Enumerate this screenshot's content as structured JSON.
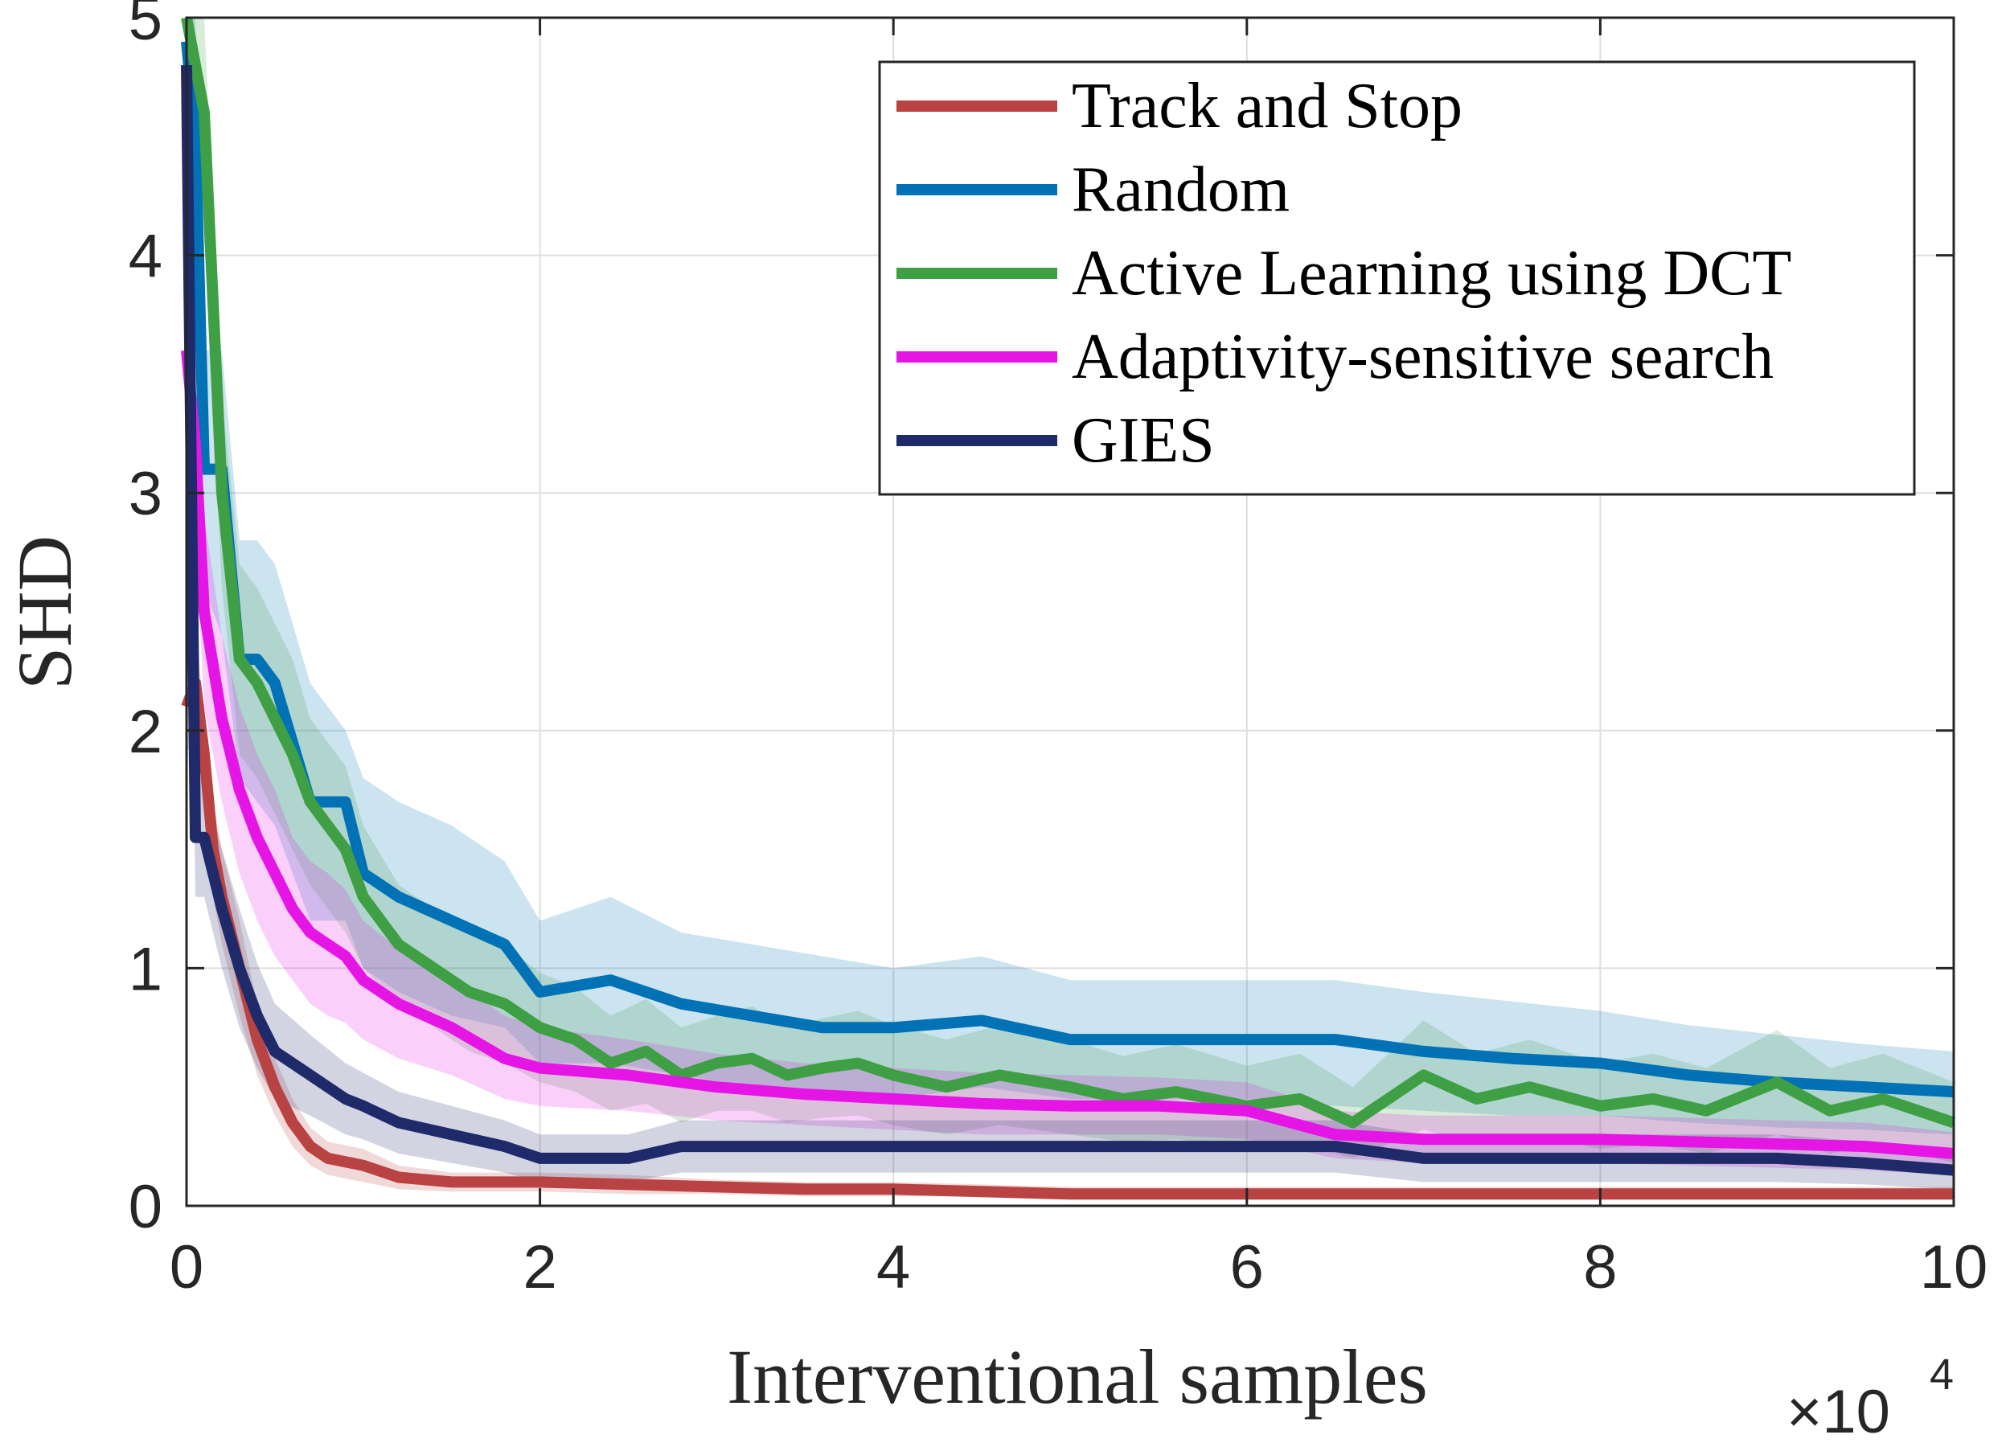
{
  "chart_data": {
    "type": "line",
    "title": "",
    "xlabel": "Interventional samples",
    "ylabel": "SHD",
    "xlim": [
      0,
      10
    ],
    "ylim": [
      0,
      5
    ],
    "x_multiplier_base": "×10",
    "x_multiplier_exponent": "4",
    "xticks": [
      0,
      2,
      4,
      6,
      8,
      10
    ],
    "yticks": [
      0,
      1,
      2,
      3,
      4,
      5
    ],
    "xtick_labels": [
      "0",
      "2",
      "4",
      "6",
      "8",
      "10"
    ],
    "ytick_labels": [
      "0",
      "1",
      "2",
      "3",
      "4",
      "5"
    ],
    "grid": true,
    "legend_position": "top-right",
    "series": [
      {
        "name": "Track and Stop",
        "color": "#B94242",
        "x": [
          0,
          0.05,
          0.1,
          0.15,
          0.2,
          0.3,
          0.4,
          0.5,
          0.6,
          0.7,
          0.8,
          1.0,
          1.2,
          1.5,
          2.0,
          2.5,
          3.0,
          3.5,
          4.0,
          4.5,
          5.0,
          6.0,
          7.0,
          8.0,
          9.0,
          10.0
        ],
        "y": [
          2.1,
          2.2,
          1.9,
          1.5,
          1.3,
          1.0,
          0.7,
          0.5,
          0.35,
          0.25,
          0.2,
          0.17,
          0.12,
          0.1,
          0.1,
          0.09,
          0.08,
          0.07,
          0.07,
          0.06,
          0.05,
          0.05,
          0.05,
          0.05,
          0.05,
          0.05
        ],
        "band_lower": [
          1.9,
          2.0,
          1.7,
          1.3,
          1.1,
          0.8,
          0.55,
          0.38,
          0.25,
          0.17,
          0.13,
          0.1,
          0.07,
          0.06,
          0.06,
          0.05,
          0.05,
          0.04,
          0.04,
          0.04,
          0.03,
          0.03,
          0.03,
          0.03,
          0.03,
          0.03
        ],
        "band_upper": [
          2.3,
          2.4,
          2.1,
          1.7,
          1.5,
          1.2,
          0.85,
          0.62,
          0.45,
          0.33,
          0.27,
          0.24,
          0.17,
          0.14,
          0.14,
          0.13,
          0.11,
          0.1,
          0.1,
          0.09,
          0.08,
          0.08,
          0.08,
          0.08,
          0.08,
          0.08
        ]
      },
      {
        "name": "Random",
        "color": "#0072B5",
        "x": [
          0,
          0.05,
          0.1,
          0.2,
          0.3,
          0.4,
          0.5,
          0.7,
          0.9,
          1.0,
          1.2,
          1.5,
          1.8,
          2.0,
          2.4,
          2.8,
          3.2,
          3.6,
          4.0,
          4.5,
          5.0,
          5.5,
          6.0,
          6.5,
          7.0,
          7.5,
          8.0,
          8.5,
          9.0,
          9.5,
          10.0
        ],
        "y": [
          4.9,
          4.5,
          3.1,
          3.1,
          2.3,
          2.3,
          2.2,
          1.7,
          1.7,
          1.4,
          1.3,
          1.2,
          1.1,
          0.9,
          0.95,
          0.85,
          0.8,
          0.75,
          0.75,
          0.78,
          0.7,
          0.7,
          0.7,
          0.7,
          0.65,
          0.62,
          0.6,
          0.55,
          0.52,
          0.5,
          0.48
        ],
        "band_lower": [
          4.4,
          3.9,
          2.6,
          2.4,
          1.8,
          1.7,
          1.6,
          1.2,
          1.2,
          1.0,
          0.9,
          0.8,
          0.75,
          0.6,
          0.6,
          0.55,
          0.5,
          0.48,
          0.45,
          0.5,
          0.45,
          0.45,
          0.45,
          0.42,
          0.4,
          0.38,
          0.38,
          0.35,
          0.33,
          0.32,
          0.3
        ],
        "band_upper": [
          5.0,
          5.0,
          3.6,
          3.6,
          2.8,
          2.8,
          2.7,
          2.2,
          2.0,
          1.8,
          1.7,
          1.6,
          1.45,
          1.2,
          1.3,
          1.15,
          1.1,
          1.05,
          1.0,
          1.05,
          0.95,
          0.95,
          0.95,
          0.95,
          0.9,
          0.86,
          0.82,
          0.76,
          0.72,
          0.68,
          0.65
        ]
      },
      {
        "name": "Active Learning using DCT",
        "color": "#3F9F45",
        "x": [
          0,
          0.1,
          0.2,
          0.3,
          0.4,
          0.5,
          0.6,
          0.7,
          0.8,
          0.9,
          1.0,
          1.2,
          1.4,
          1.6,
          1.8,
          2.0,
          2.2,
          2.4,
          2.6,
          2.8,
          3.0,
          3.2,
          3.4,
          3.6,
          3.8,
          4.0,
          4.3,
          4.6,
          5.0,
          5.3,
          5.6,
          6.0,
          6.3,
          6.6,
          7.0,
          7.3,
          7.6,
          8.0,
          8.3,
          8.6,
          9.0,
          9.3,
          9.6,
          10.0
        ],
        "y": [
          5.0,
          4.6,
          3.0,
          2.3,
          2.2,
          2.05,
          1.9,
          1.7,
          1.6,
          1.5,
          1.3,
          1.1,
          1.0,
          0.9,
          0.85,
          0.75,
          0.7,
          0.6,
          0.65,
          0.55,
          0.6,
          0.62,
          0.55,
          0.58,
          0.6,
          0.55,
          0.5,
          0.55,
          0.5,
          0.45,
          0.48,
          0.42,
          0.45,
          0.35,
          0.55,
          0.45,
          0.5,
          0.42,
          0.45,
          0.4,
          0.52,
          0.4,
          0.45,
          0.35
        ],
        "band_lower": [
          4.7,
          4.2,
          2.6,
          1.9,
          1.8,
          1.65,
          1.5,
          1.35,
          1.25,
          1.15,
          1.0,
          0.85,
          0.75,
          0.65,
          0.6,
          0.52,
          0.48,
          0.4,
          0.43,
          0.35,
          0.4,
          0.4,
          0.35,
          0.37,
          0.38,
          0.34,
          0.3,
          0.34,
          0.3,
          0.27,
          0.28,
          0.25,
          0.26,
          0.2,
          0.32,
          0.26,
          0.3,
          0.24,
          0.26,
          0.22,
          0.3,
          0.22,
          0.26,
          0.18
        ],
        "band_upper": [
          5.0,
          5.0,
          3.4,
          2.7,
          2.6,
          2.45,
          2.3,
          2.05,
          1.95,
          1.85,
          1.6,
          1.35,
          1.25,
          1.15,
          1.1,
          0.98,
          0.92,
          0.8,
          0.87,
          0.75,
          0.8,
          0.84,
          0.75,
          0.79,
          0.82,
          0.76,
          0.7,
          0.76,
          0.7,
          0.63,
          0.68,
          0.59,
          0.64,
          0.5,
          0.78,
          0.64,
          0.7,
          0.6,
          0.64,
          0.58,
          0.74,
          0.58,
          0.64,
          0.52
        ]
      },
      {
        "name": "Adaptivity-sensitive search",
        "color": "#E516E5",
        "x": [
          0,
          0.05,
          0.1,
          0.2,
          0.3,
          0.4,
          0.5,
          0.6,
          0.7,
          0.8,
          0.9,
          1.0,
          1.2,
          1.5,
          1.8,
          2.0,
          2.5,
          3.0,
          3.5,
          4.0,
          4.5,
          5.0,
          5.5,
          6.0,
          6.5,
          7.0,
          7.5,
          8.0,
          8.5,
          9.0,
          9.5,
          10.0
        ],
        "y": [
          3.6,
          3.2,
          2.5,
          2.05,
          1.75,
          1.55,
          1.4,
          1.25,
          1.15,
          1.1,
          1.05,
          0.95,
          0.85,
          0.75,
          0.62,
          0.58,
          0.55,
          0.5,
          0.47,
          0.45,
          0.43,
          0.42,
          0.42,
          0.4,
          0.3,
          0.28,
          0.28,
          0.28,
          0.27,
          0.26,
          0.25,
          0.22
        ],
        "band_lower": [
          3.2,
          2.8,
          2.1,
          1.7,
          1.4,
          1.2,
          1.05,
          0.95,
          0.85,
          0.8,
          0.77,
          0.7,
          0.62,
          0.55,
          0.45,
          0.42,
          0.4,
          0.36,
          0.34,
          0.32,
          0.3,
          0.3,
          0.3,
          0.28,
          0.2,
          0.18,
          0.18,
          0.18,
          0.17,
          0.16,
          0.15,
          0.13
        ],
        "band_upper": [
          4.0,
          3.6,
          2.9,
          2.4,
          2.1,
          1.9,
          1.75,
          1.55,
          1.45,
          1.4,
          1.33,
          1.2,
          1.08,
          0.95,
          0.8,
          0.75,
          0.7,
          0.64,
          0.6,
          0.58,
          0.56,
          0.55,
          0.54,
          0.52,
          0.4,
          0.38,
          0.38,
          0.38,
          0.37,
          0.36,
          0.35,
          0.31
        ]
      },
      {
        "name": "GIES",
        "color": "#1F2A6B",
        "x": [
          0,
          0.05,
          0.1,
          0.2,
          0.3,
          0.4,
          0.5,
          0.7,
          0.9,
          1.0,
          1.2,
          1.5,
          1.8,
          2.0,
          2.5,
          2.8,
          3.5,
          4.0,
          5.0,
          6.0,
          6.5,
          7.0,
          7.5,
          8.0,
          8.5,
          9.0,
          9.5,
          10.0
        ],
        "y": [
          4.8,
          1.55,
          1.55,
          1.25,
          1.0,
          0.8,
          0.65,
          0.55,
          0.45,
          0.42,
          0.35,
          0.3,
          0.25,
          0.2,
          0.2,
          0.25,
          0.25,
          0.25,
          0.25,
          0.25,
          0.25,
          0.2,
          0.2,
          0.2,
          0.2,
          0.2,
          0.18,
          0.15
        ],
        "band_lower": [
          4.2,
          1.3,
          1.3,
          1.0,
          0.75,
          0.58,
          0.45,
          0.38,
          0.3,
          0.28,
          0.22,
          0.18,
          0.14,
          0.1,
          0.1,
          0.14,
          0.14,
          0.14,
          0.14,
          0.14,
          0.14,
          0.1,
          0.1,
          0.1,
          0.1,
          0.1,
          0.09,
          0.07
        ],
        "band_upper": [
          5.0,
          1.8,
          1.8,
          1.5,
          1.25,
          1.02,
          0.85,
          0.72,
          0.6,
          0.56,
          0.48,
          0.42,
          0.36,
          0.3,
          0.3,
          0.36,
          0.36,
          0.36,
          0.36,
          0.36,
          0.36,
          0.3,
          0.3,
          0.3,
          0.3,
          0.3,
          0.27,
          0.23
        ]
      }
    ]
  }
}
